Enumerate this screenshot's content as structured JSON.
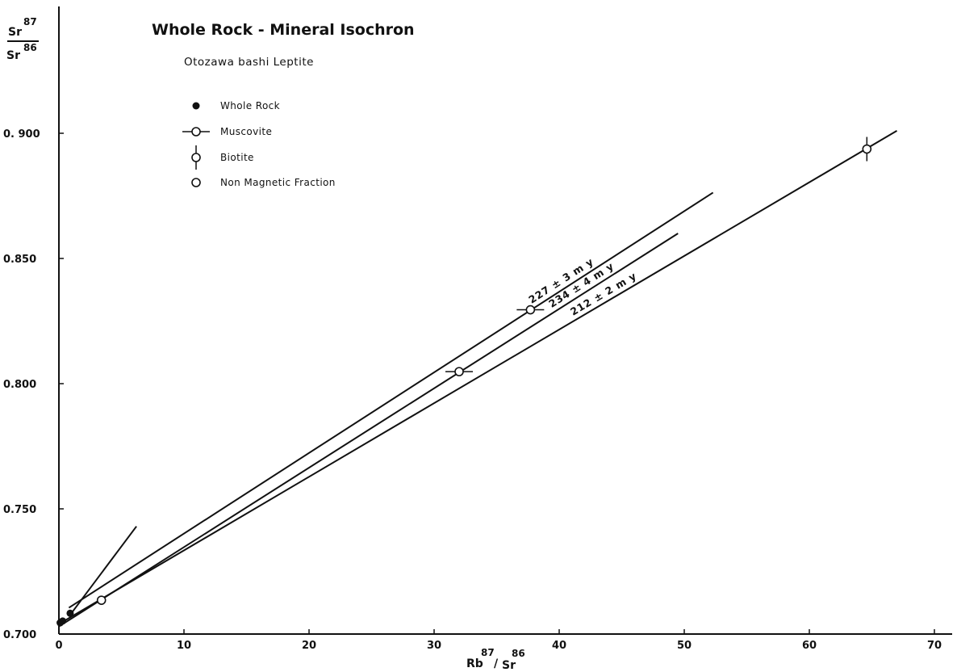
{
  "chart_data": {
    "type": "scatter",
    "title": "Whole Rock - Mineral  Isochron",
    "subtitle": "Otozawa bashi  Leptite",
    "xlabel": {
      "base1": "Rb",
      "sup1": "87",
      "sep": "/",
      "base2": "Sr",
      "sup2": "86"
    },
    "ylabel": {
      "numerator_base": "Sr",
      "numerator_sup": "87",
      "denominator_base": "Sr",
      "denominator_sup": "86"
    },
    "xlim": [
      0,
      70
    ],
    "ylim": [
      0.7,
      0.905
    ],
    "x_ticks": [
      "0",
      "10",
      "20",
      "30",
      "40",
      "50",
      "60",
      "70"
    ],
    "y_ticks": [
      "0.700",
      "0.750",
      "0.800",
      "0.850",
      "0. 900"
    ],
    "x_tick_values": [
      0,
      10,
      20,
      30,
      40,
      50,
      60,
      70
    ],
    "y_tick_values": [
      0.7,
      0.75,
      0.8,
      0.85,
      0.9
    ],
    "grid": false,
    "legend_position": "top-left",
    "legend": [
      {
        "label": "Whole Rock",
        "marker": "filled-circle"
      },
      {
        "label": "Muscovite",
        "marker": "open-circle-h-bar"
      },
      {
        "label": "Biotite",
        "marker": "open-circle-v-bar"
      },
      {
        "label": "Non Magnetic Fraction",
        "marker": "open-circle"
      }
    ],
    "series": [
      {
        "marker": "filled-circle",
        "points": [
          [
            0.1,
            0.7045
          ],
          [
            0.3,
            0.7052
          ],
          [
            0.9,
            0.7083
          ]
        ]
      },
      {
        "marker": "open-circle-h-bar",
        "points": [
          [
            37.7,
            0.8295
          ],
          [
            32.0,
            0.8048
          ]
        ]
      },
      {
        "marker": "open-circle-v-bar",
        "points": [
          [
            64.6,
            0.8937
          ]
        ]
      },
      {
        "marker": "open-circle",
        "points": [
          [
            3.4,
            0.7135
          ]
        ]
      }
    ],
    "isochrons": [
      {
        "label": "227 ± 3 m y",
        "x": [
          0.8,
          52.3
        ],
        "y": [
          0.7105,
          0.8763
        ]
      },
      {
        "label": "234 ± 4 m y",
        "x": [
          0.0,
          49.5
        ],
        "y": [
          0.703,
          0.86
        ]
      },
      {
        "label": "212 ± 2 m y",
        "x": [
          0.0,
          67.0
        ],
        "y": [
          0.704,
          0.901
        ]
      },
      {
        "label": "",
        "x": [
          0.8,
          6.2
        ],
        "y": [
          0.707,
          0.743
        ]
      }
    ]
  }
}
